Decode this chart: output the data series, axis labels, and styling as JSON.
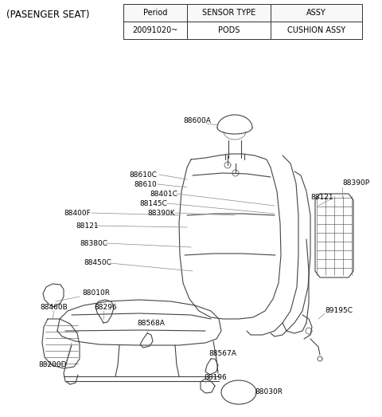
{
  "title": "(PASENGER SEAT)",
  "table": {
    "headers": [
      "Period",
      "SENSOR TYPE",
      "ASSY"
    ],
    "rows": [
      [
        "20091020~",
        "PODS",
        "CUSHION ASSY"
      ]
    ]
  },
  "bg_color": "#ffffff",
  "text_color": "#000000",
  "font_size_labels": 6.5,
  "font_size_title": 8.5,
  "line_color": "#444444",
  "line_width": 0.8
}
